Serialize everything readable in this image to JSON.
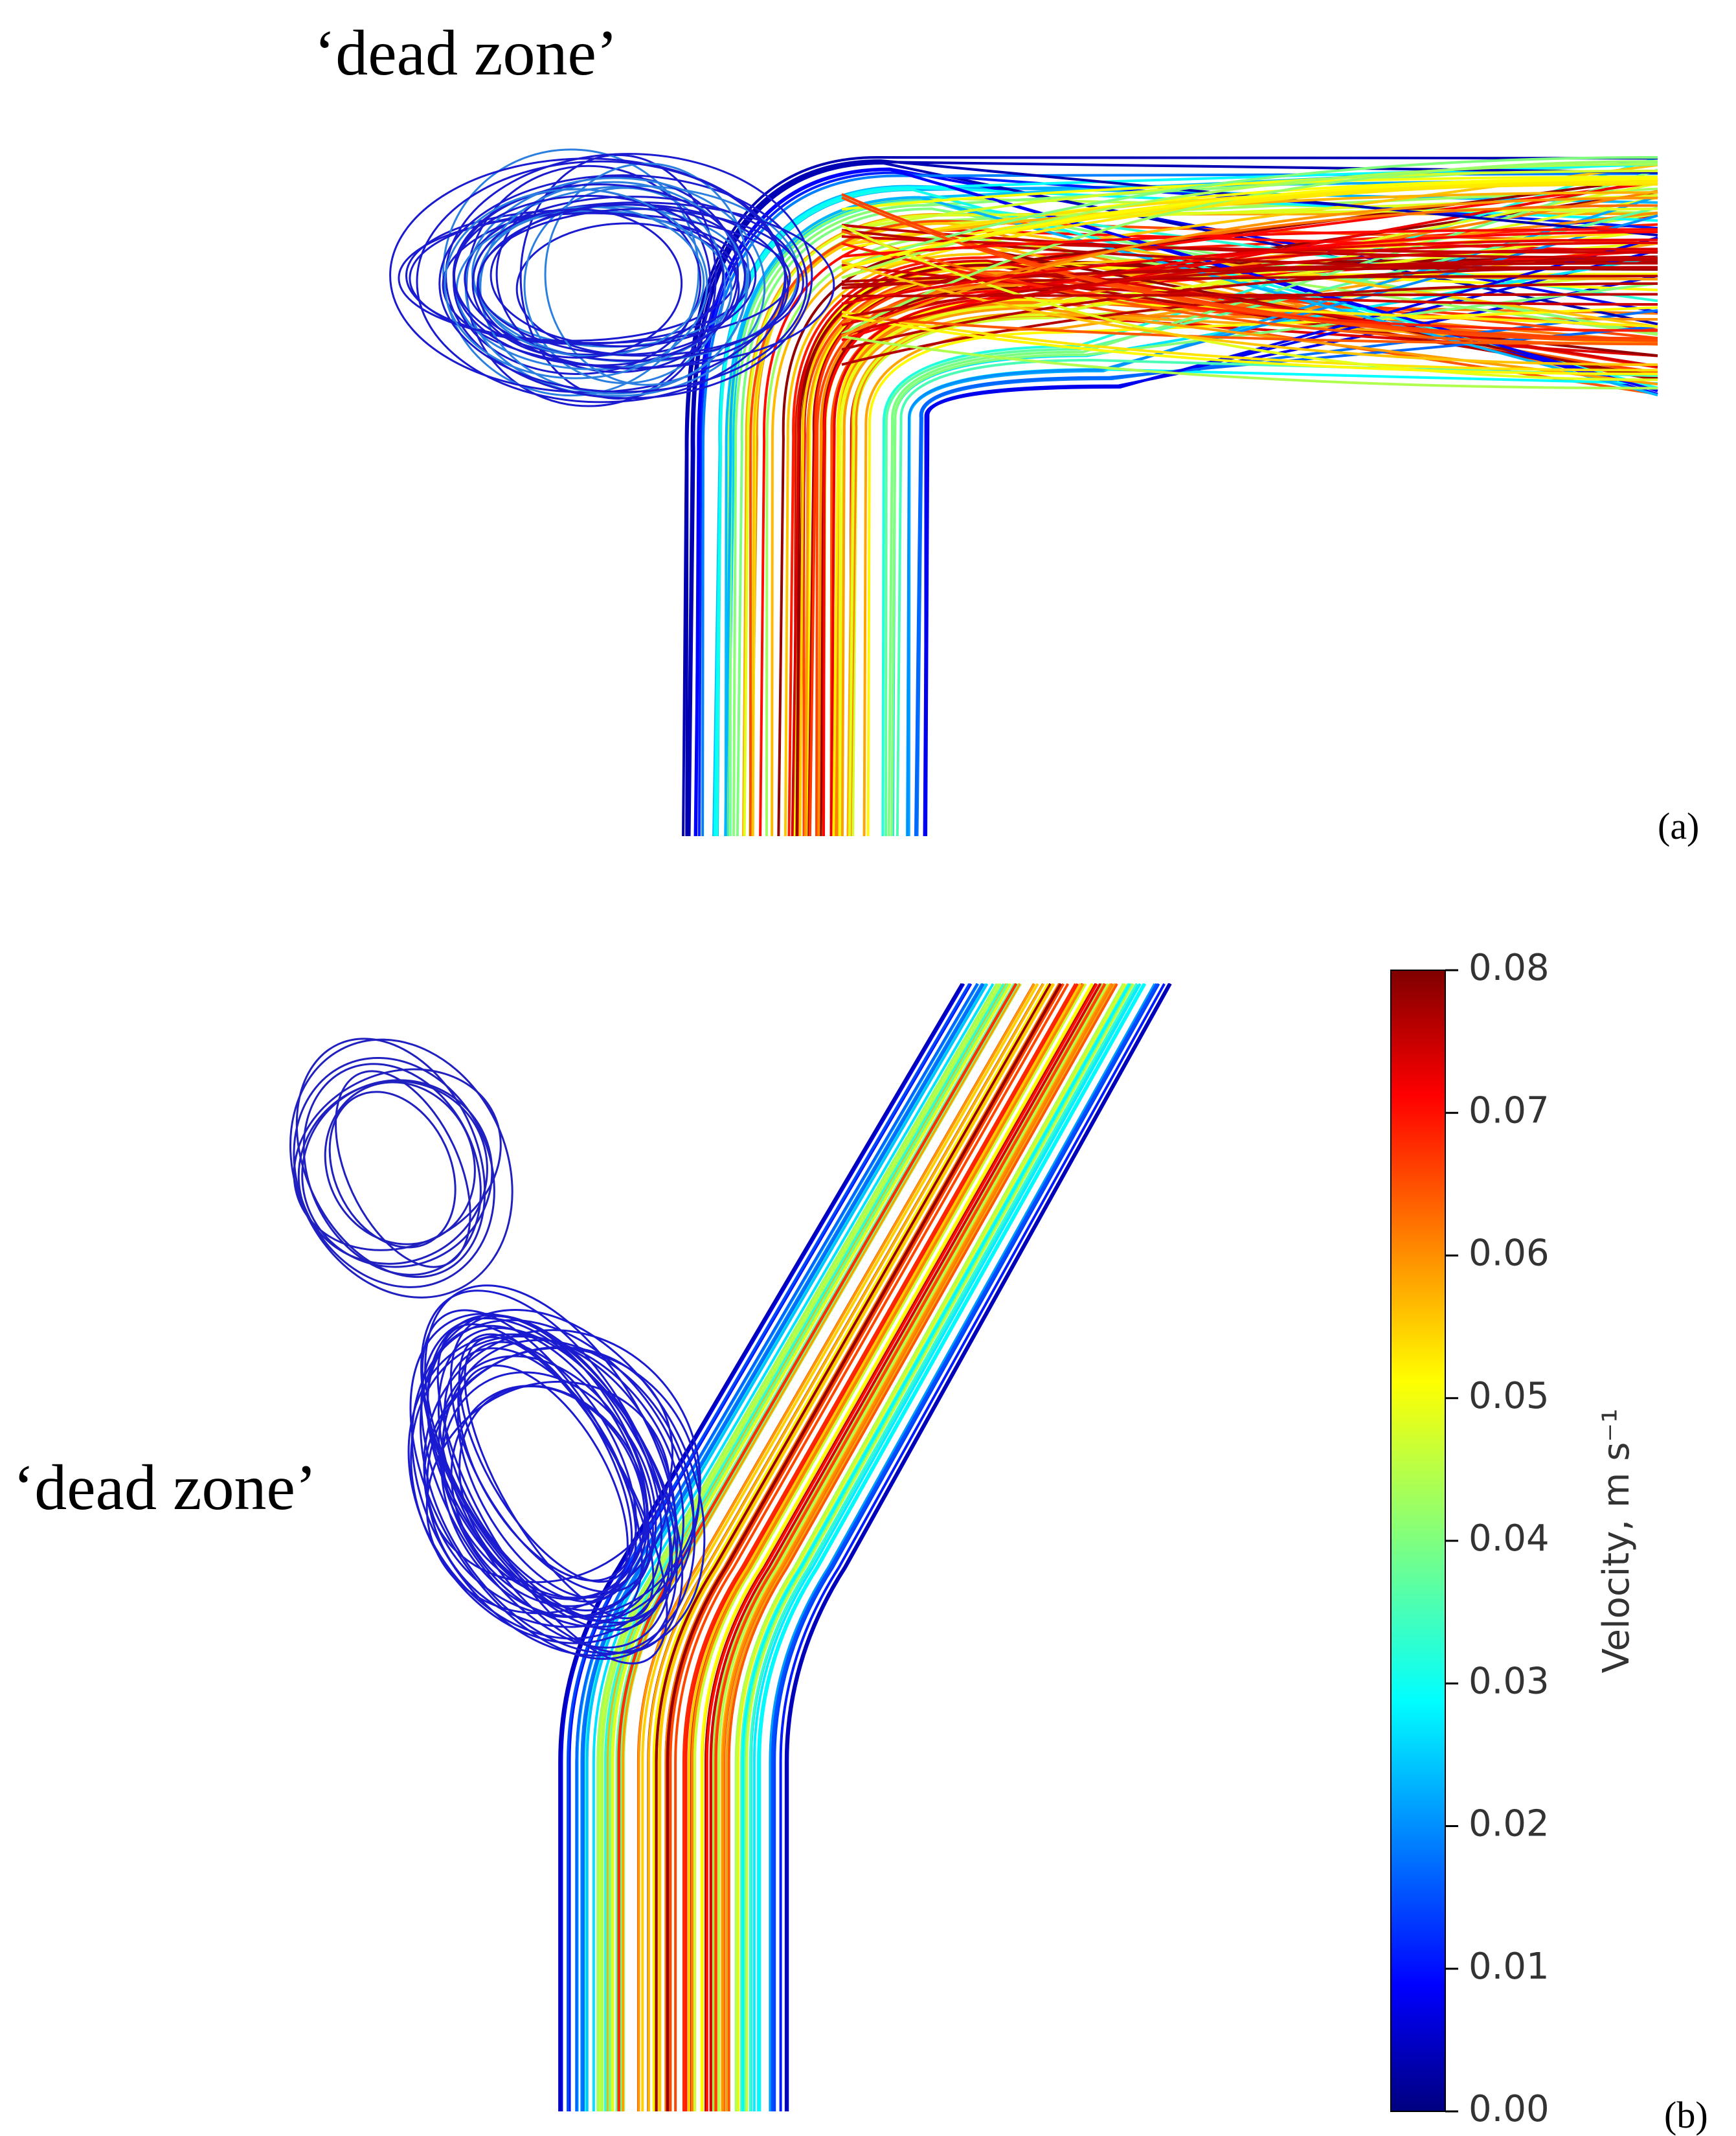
{
  "panels": [
    {
      "annotation": "‘dead zone’",
      "label": "(a)"
    },
    {
      "annotation": "‘dead zone’",
      "label": "(b)"
    }
  ],
  "colorbar": {
    "label": "Velocity, m s⁻¹",
    "lim": [
      0,
      0.08
    ],
    "ticks": [
      {
        "value": 0,
        "label": "0.00"
      },
      {
        "value": 0.01,
        "label": "0.01"
      },
      {
        "value": 0.02,
        "label": "0.02"
      },
      {
        "value": 0.03,
        "label": "0.03"
      },
      {
        "value": 0.04,
        "label": "0.04"
      },
      {
        "value": 0.05,
        "label": "0.05"
      },
      {
        "value": 0.06,
        "label": "0.06"
      },
      {
        "value": 0.07,
        "label": "0.07"
      },
      {
        "value": 0.08,
        "label": "0.08"
      }
    ]
  }
}
